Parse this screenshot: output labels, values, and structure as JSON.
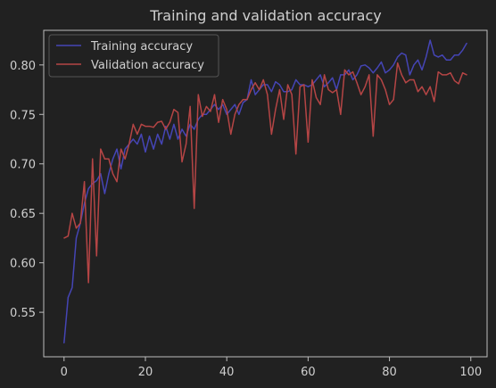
{
  "chart_data": {
    "type": "line",
    "title": "Training and validation accuracy",
    "xlabel": "",
    "ylabel": "",
    "xlim": [
      -5,
      104
    ],
    "ylim": [
      0.505,
      0.835
    ],
    "xticks": [
      0,
      20,
      40,
      60,
      80,
      100
    ],
    "xtick_labels": [
      "0",
      "20",
      "40",
      "60",
      "80",
      "100"
    ],
    "yticks": [
      0.55,
      0.6,
      0.65,
      0.7,
      0.75,
      0.8
    ],
    "ytick_labels": [
      "0.55",
      "0.60",
      "0.65",
      "0.70",
      "0.75",
      "0.80"
    ],
    "grid": false,
    "legend_position": "top-left",
    "colors": {
      "background": "#212121",
      "axes_frame": "#bdbdbd",
      "text": "#cfcfcf"
    },
    "series": [
      {
        "name": "Training accuracy",
        "color": "#4545b5",
        "x": [
          0,
          1,
          2,
          3,
          4,
          5,
          6,
          7,
          8,
          9,
          10,
          11,
          12,
          13,
          14,
          15,
          16,
          17,
          18,
          19,
          20,
          21,
          22,
          23,
          24,
          25,
          26,
          27,
          28,
          29,
          30,
          31,
          32,
          33,
          34,
          35,
          36,
          37,
          38,
          39,
          40,
          41,
          42,
          43,
          44,
          45,
          46,
          47,
          48,
          49,
          50,
          51,
          52,
          53,
          54,
          55,
          56,
          57,
          58,
          59,
          60,
          61,
          62,
          63,
          64,
          65,
          66,
          67,
          68,
          69,
          70,
          71,
          72,
          73,
          74,
          75,
          76,
          77,
          78,
          79,
          80,
          81,
          82,
          83,
          84,
          85,
          86,
          87,
          88,
          89,
          90,
          91,
          92,
          93,
          94,
          95,
          96,
          97,
          98,
          99
        ],
        "values": [
          0.519,
          0.565,
          0.575,
          0.625,
          0.64,
          0.66,
          0.675,
          0.68,
          0.683,
          0.69,
          0.67,
          0.69,
          0.705,
          0.715,
          0.695,
          0.715,
          0.72,
          0.725,
          0.72,
          0.73,
          0.712,
          0.728,
          0.715,
          0.73,
          0.72,
          0.738,
          0.725,
          0.74,
          0.725,
          0.735,
          0.728,
          0.74,
          0.735,
          0.745,
          0.75,
          0.75,
          0.755,
          0.76,
          0.755,
          0.76,
          0.75,
          0.755,
          0.76,
          0.75,
          0.762,
          0.765,
          0.785,
          0.77,
          0.775,
          0.78,
          0.78,
          0.773,
          0.783,
          0.78,
          0.773,
          0.773,
          0.775,
          0.785,
          0.78,
          0.78,
          0.778,
          0.78,
          0.785,
          0.79,
          0.778,
          0.782,
          0.787,
          0.775,
          0.79,
          0.79,
          0.795,
          0.785,
          0.79,
          0.799,
          0.8,
          0.797,
          0.792,
          0.797,
          0.803,
          0.792,
          0.795,
          0.8,
          0.808,
          0.812,
          0.81,
          0.79,
          0.8,
          0.805,
          0.795,
          0.808,
          0.825,
          0.81,
          0.808,
          0.81,
          0.805,
          0.805,
          0.81,
          0.81,
          0.815,
          0.822
        ]
      },
      {
        "name": "Validation accuracy",
        "color": "#b54545",
        "x": [
          0,
          1,
          2,
          3,
          4,
          5,
          6,
          7,
          8,
          9,
          10,
          11,
          12,
          13,
          14,
          15,
          16,
          17,
          18,
          19,
          20,
          21,
          22,
          23,
          24,
          25,
          26,
          27,
          28,
          29,
          30,
          31,
          32,
          33,
          34,
          35,
          36,
          37,
          38,
          39,
          40,
          41,
          42,
          43,
          44,
          45,
          46,
          47,
          48,
          49,
          50,
          51,
          52,
          53,
          54,
          55,
          56,
          57,
          58,
          59,
          60,
          61,
          62,
          63,
          64,
          65,
          66,
          67,
          68,
          69,
          70,
          71,
          72,
          73,
          74,
          75,
          76,
          77,
          78,
          79,
          80,
          81,
          82,
          83,
          84,
          85,
          86,
          87,
          88,
          89,
          90,
          91,
          92,
          93,
          94,
          95,
          96,
          97,
          98,
          99
        ],
        "values": [
          0.625,
          0.627,
          0.65,
          0.635,
          0.64,
          0.682,
          0.58,
          0.705,
          0.607,
          0.715,
          0.705,
          0.705,
          0.69,
          0.682,
          0.715,
          0.705,
          0.72,
          0.74,
          0.73,
          0.74,
          0.738,
          0.738,
          0.737,
          0.742,
          0.743,
          0.735,
          0.742,
          0.755,
          0.752,
          0.702,
          0.72,
          0.758,
          0.655,
          0.77,
          0.748,
          0.758,
          0.753,
          0.77,
          0.742,
          0.765,
          0.755,
          0.73,
          0.75,
          0.76,
          0.765,
          0.765,
          0.775,
          0.782,
          0.775,
          0.785,
          0.77,
          0.73,
          0.755,
          0.775,
          0.745,
          0.78,
          0.77,
          0.71,
          0.778,
          0.78,
          0.722,
          0.785,
          0.767,
          0.76,
          0.79,
          0.775,
          0.772,
          0.775,
          0.75,
          0.795,
          0.79,
          0.793,
          0.782,
          0.77,
          0.778,
          0.79,
          0.728,
          0.79,
          0.785,
          0.775,
          0.76,
          0.765,
          0.802,
          0.79,
          0.782,
          0.785,
          0.785,
          0.773,
          0.778,
          0.77,
          0.778,
          0.763,
          0.793,
          0.79,
          0.79,
          0.792,
          0.784,
          0.781,
          0.792,
          0.79
        ]
      }
    ]
  }
}
